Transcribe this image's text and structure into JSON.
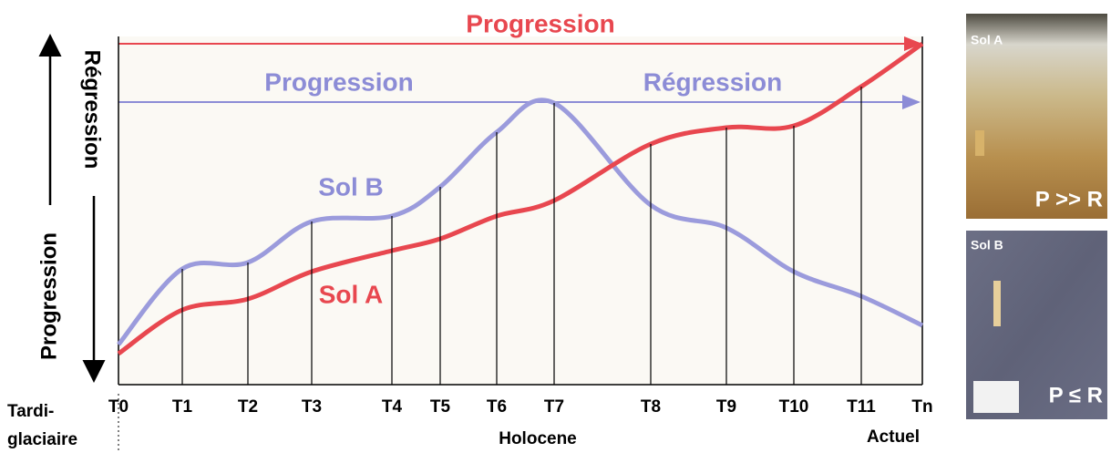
{
  "arrows": {
    "top": "Progression",
    "middle_left": "Progression",
    "middle_right": "Régression"
  },
  "side_axis": {
    "upper": "Régression",
    "lower": "Progression"
  },
  "curves": {
    "sol_b": "Sol B",
    "sol_a": "Sol A"
  },
  "time_labels": [
    "T0",
    "T1",
    "T2",
    "T3",
    "T4",
    "T5",
    "T6",
    "T7",
    "T8",
    "T9",
    "T10",
    "T11",
    "Tn"
  ],
  "periods": {
    "left_line1": "Tardi-",
    "left_line2": "glaciaire",
    "middle": "Holocene",
    "right": "Actuel"
  },
  "photos": [
    {
      "label": "Sol A",
      "caption": "P >> R"
    },
    {
      "label": "Sol B",
      "caption": "P ≤ R"
    }
  ]
}
